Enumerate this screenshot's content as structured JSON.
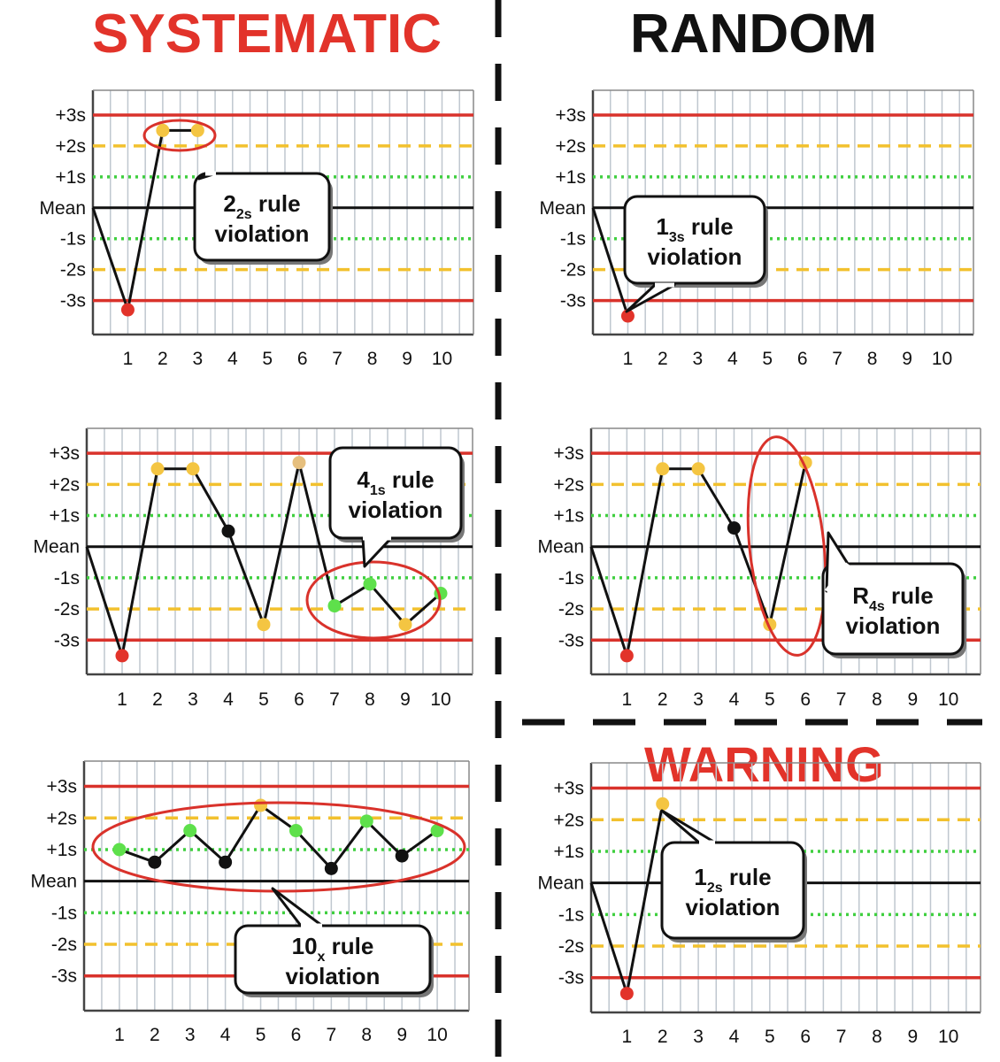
{
  "headings": {
    "systematic": "SYSTEMATIC",
    "random": "RANDOM",
    "warning": "WARNING"
  },
  "colors": {
    "red_line": "#d9322b",
    "yellow_dash": "#f2c12e",
    "green_dot_line": "#3fcf3f",
    "grid": "#bfc7cf",
    "red_point": "#e2332a",
    "yellow_point": "#f4c542",
    "green_point": "#5ee04b",
    "black_point": "#111111",
    "tan_point": "#e6bf7d"
  },
  "chart_data": [
    {
      "id": "sys-22s",
      "type": "line",
      "y_ticks": [
        "+3s",
        "+2s",
        "+1s",
        "Mean",
        "-1s",
        "-2s",
        "-3s"
      ],
      "y_values": [
        3,
        2,
        1,
        0,
        -1,
        -2,
        -3
      ],
      "x_ticks": [
        "1",
        "2",
        "3",
        "4",
        "5",
        "6",
        "7",
        "8",
        "9",
        "10"
      ],
      "ylim": [
        -4.1,
        3.8
      ],
      "series": [
        {
          "x": [
            0,
            1,
            2,
            3
          ],
          "y": [
            0,
            -3.3,
            2.5,
            2.5
          ],
          "colors": [
            "none",
            "red",
            "yellow",
            "yellow"
          ]
        }
      ],
      "callout": {
        "number": "2",
        "sub": "2s",
        "suffix": " rule",
        "line2": "violation"
      }
    },
    {
      "id": "rand-13s",
      "type": "line",
      "y_ticks": [
        "+3s",
        "+2s",
        "+1s",
        "Mean",
        "-1s",
        "-2s",
        "-3s"
      ],
      "y_values": [
        3,
        2,
        1,
        0,
        -1,
        -2,
        -3
      ],
      "x_ticks": [
        "1",
        "2",
        "3",
        "4",
        "5",
        "6",
        "7",
        "8",
        "9",
        "10"
      ],
      "ylim": [
        -4.1,
        3.8
      ],
      "series": [
        {
          "x": [
            0,
            1
          ],
          "y": [
            0,
            -3.5
          ],
          "colors": [
            "none",
            "red"
          ]
        }
      ],
      "callout": {
        "number": "1",
        "sub": "3s",
        "suffix": " rule",
        "line2": "violation"
      }
    },
    {
      "id": "sys-41s",
      "type": "line",
      "y_ticks": [
        "+3s",
        "+2s",
        "+1s",
        "Mean",
        "-1s",
        "-2s",
        "-3s"
      ],
      "y_values": [
        3,
        2,
        1,
        0,
        -1,
        -2,
        -3
      ],
      "x_ticks": [
        "1",
        "2",
        "3",
        "4",
        "5",
        "6",
        "7",
        "8",
        "9",
        "10"
      ],
      "ylim": [
        -4.1,
        3.8
      ],
      "series": [
        {
          "x": [
            0,
            1,
            2,
            3,
            4,
            5,
            6,
            7,
            8,
            9,
            10
          ],
          "y": [
            0,
            -3.5,
            2.5,
            2.5,
            0.5,
            -2.5,
            2.7,
            -1.9,
            -1.2,
            -2.5,
            -1.5
          ],
          "colors": [
            "none",
            "red",
            "yellow",
            "yellow",
            "black",
            "yellow",
            "tan",
            "green",
            "green",
            "yellow",
            "green"
          ]
        }
      ],
      "callout": {
        "number": "4",
        "sub": "1s",
        "suffix": " rule",
        "line2": "violation"
      }
    },
    {
      "id": "rand-r4s",
      "type": "line",
      "y_ticks": [
        "+3s",
        "+2s",
        "+1s",
        "Mean",
        "-1s",
        "-2s",
        "-3s"
      ],
      "y_values": [
        3,
        2,
        1,
        0,
        -1,
        -2,
        -3
      ],
      "x_ticks": [
        "1",
        "2",
        "3",
        "4",
        "5",
        "6",
        "7",
        "8",
        "9",
        "10"
      ],
      "ylim": [
        -4.1,
        3.8
      ],
      "series": [
        {
          "x": [
            0,
            1,
            2,
            3,
            4,
            5,
            6
          ],
          "y": [
            0,
            -3.5,
            2.5,
            2.5,
            0.6,
            -2.5,
            2.7
          ],
          "colors": [
            "none",
            "red",
            "yellow",
            "yellow",
            "black",
            "yellow",
            "yellow"
          ]
        }
      ],
      "callout": {
        "number": "R",
        "sub": "4s",
        "suffix": " rule",
        "line2": "violation"
      }
    },
    {
      "id": "sys-10x",
      "type": "line",
      "y_ticks": [
        "+3s",
        "+2s",
        "+1s",
        "Mean",
        "-1s",
        "-2s",
        "-3s"
      ],
      "y_values": [
        3,
        2,
        1,
        0,
        -1,
        -2,
        -3
      ],
      "x_ticks": [
        "1",
        "2",
        "3",
        "4",
        "5",
        "6",
        "7",
        "8",
        "9",
        "10"
      ],
      "ylim": [
        -4.1,
        3.8
      ],
      "series": [
        {
          "x": [
            1,
            2,
            3,
            4,
            5,
            6,
            7,
            8,
            9,
            10
          ],
          "y": [
            1.0,
            0.6,
            1.6,
            0.6,
            2.4,
            1.6,
            0.4,
            1.9,
            0.8,
            1.6
          ],
          "colors": [
            "green",
            "black",
            "green",
            "black",
            "yellow",
            "green",
            "black",
            "green",
            "black",
            "green"
          ]
        }
      ],
      "callout": {
        "number": "10",
        "sub": "x",
        "suffix": " rule",
        "line2": "violation"
      }
    },
    {
      "id": "warn-12s",
      "type": "line",
      "y_ticks": [
        "+3s",
        "+2s",
        "+1s",
        "Mean",
        "-1s",
        "-2s",
        "-3s"
      ],
      "y_values": [
        3,
        2,
        1,
        0,
        -1,
        -2,
        -3
      ],
      "x_ticks": [
        "1",
        "2",
        "3",
        "4",
        "5",
        "6",
        "7",
        "8",
        "9",
        "10"
      ],
      "ylim": [
        -4.1,
        3.8
      ],
      "series": [
        {
          "x": [
            0,
            1,
            2
          ],
          "y": [
            0,
            -3.5,
            2.5
          ],
          "colors": [
            "none",
            "red",
            "yellow"
          ]
        }
      ],
      "callout": {
        "number": "1",
        "sub": "2s",
        "suffix": " rule",
        "line2": "violation"
      }
    }
  ]
}
